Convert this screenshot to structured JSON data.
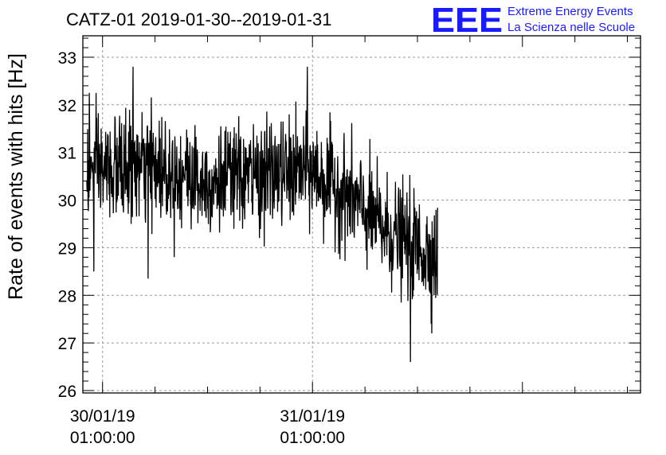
{
  "chart_data": {
    "type": "line",
    "title": "CATZ-01 2019-01-30--2019-01-31",
    "ylabel": "Rate of events with hits [Hz]",
    "xlabel": "",
    "ylim": [
      25.95,
      33.45
    ],
    "yticks": [
      26,
      27,
      28,
      29,
      30,
      31,
      32,
      33
    ],
    "ytick_labels": [
      "26",
      "27",
      "28",
      "29",
      "30",
      "31",
      "32",
      "33"
    ],
    "x_range_hours": [
      -2.25,
      61.5
    ],
    "xticks": [
      {
        "hour": 0,
        "line1": "30/01/19",
        "line2": "01:00:00"
      },
      {
        "hour": 24,
        "line1": "31/01/19",
        "line2": "01:00:00"
      }
    ],
    "grid": true,
    "series": [
      {
        "name": "",
        "color": "#000000",
        "x_start_hours": -1.8,
        "x_end_hours": 38.3,
        "approx_points": 1100,
        "trend": [
          {
            "hour": -1.8,
            "mean": 30.6
          },
          {
            "hour": 6,
            "mean": 30.7
          },
          {
            "hour": 12,
            "mean": 30.4
          },
          {
            "hour": 20,
            "mean": 30.55
          },
          {
            "hour": 24,
            "mean": 30.6
          },
          {
            "hour": 28,
            "mean": 30.1
          },
          {
            "hour": 32,
            "mean": 29.4
          },
          {
            "hour": 36,
            "mean": 29.0
          },
          {
            "hour": 38.3,
            "mean": 28.8
          }
        ],
        "noise_std": 0.55,
        "extremes": [
          {
            "hour": -1.5,
            "value": 32.25
          },
          {
            "hour": -1.0,
            "value": 28.5
          },
          {
            "hour": 3.5,
            "value": 32.8
          },
          {
            "hour": 5.2,
            "value": 28.35
          },
          {
            "hour": 23.4,
            "value": 32.8
          },
          {
            "hour": 35.2,
            "value": 26.6
          }
        ]
      }
    ]
  },
  "logo": {
    "mark": "EEE",
    "line1": "Extreme Energy Events",
    "line2": "La Scienza nelle Scuole",
    "color": "#1a1aff"
  }
}
